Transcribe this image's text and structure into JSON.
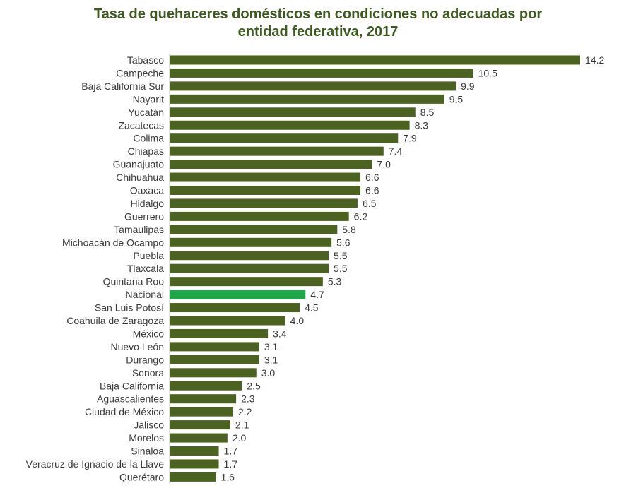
{
  "chart_data": {
    "type": "bar",
    "orientation": "horizontal",
    "title_lines": [
      "Tasa de quehaceres domésticos en condiciones no adecuadas por",
      "entidad federativa, 2017"
    ],
    "categories": [
      "Tabasco",
      "Campeche",
      "Baja California Sur",
      "Nayarit",
      "Yucatán",
      "Zacatecas",
      "Colima",
      "Chiapas",
      "Guanajuato",
      "Chihuahua",
      "Oaxaca",
      "Hidalgo",
      "Guerrero",
      "Tamaulipas",
      "Michoacán de Ocampo",
      "Puebla",
      "Tlaxcala",
      "Quintana Roo",
      "Nacional",
      "San Luis Potosí",
      "Coahuila de Zaragoza",
      "México",
      "Nuevo León",
      "Durango",
      "Sonora",
      "Baja California",
      "Aguascalientes",
      "Ciudad de México",
      "Jalisco",
      "Morelos",
      "Sinaloa",
      "Veracruz de Ignacio de la Llave",
      "Querétaro"
    ],
    "values": [
      14.2,
      10.5,
      9.9,
      9.5,
      8.5,
      8.3,
      7.9,
      7.4,
      7.0,
      6.6,
      6.6,
      6.5,
      6.2,
      5.8,
      5.6,
      5.5,
      5.5,
      5.3,
      4.7,
      4.5,
      4.0,
      3.4,
      3.1,
      3.1,
      3.0,
      2.5,
      2.3,
      2.2,
      2.1,
      2.0,
      1.7,
      1.7,
      1.6
    ],
    "value_labels": [
      "14.2",
      "10.5",
      "9.9",
      "9.5",
      "8.5",
      "8.3",
      "7.9",
      "7.4",
      "7.0",
      "6.6",
      "6.6",
      "6.5",
      "6.2",
      "5.8",
      "5.6",
      "5.5",
      "5.5",
      "5.3",
      "4.7",
      "4.5",
      "4.0",
      "3.4",
      "3.1",
      "3.1",
      "3.0",
      "2.5",
      "2.3",
      "2.2",
      "2.1",
      "2.0",
      "1.7",
      "1.7",
      "1.6"
    ],
    "highlight_category": "Nacional",
    "xlim": [
      0,
      14.2
    ],
    "grid": false,
    "legend": "none",
    "colors": {
      "bar": "#4b6221",
      "highlight": "#1fa84a",
      "title": "#3d5a1e",
      "text": "#3a3a3a",
      "axis": "#bfbfbf"
    }
  }
}
